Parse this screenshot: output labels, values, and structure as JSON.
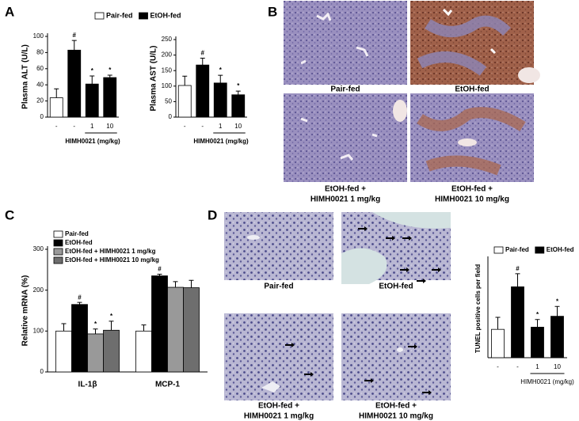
{
  "panels": {
    "A": "A",
    "B": "B",
    "C": "C",
    "D": "D"
  },
  "micrographs_B": [
    [
      "Pair-fed"
    ],
    [
      "EtOH-fed"
    ],
    [
      "EtOH-fed +",
      "HIMH0021  1 mg/kg"
    ],
    [
      "EtOH-fed +",
      "HIMH0021  10 mg/kg"
    ]
  ],
  "micrographs_D": [
    [
      "Pair-fed"
    ],
    [
      "EtOH-fed"
    ],
    [
      "EtOH-fed +",
      "HIMH0021  1 mg/kg"
    ],
    [
      "EtOH-fed +",
      "HIMH0021  10 mg/kg"
    ]
  ],
  "chart_data": [
    {
      "type": "bar",
      "ylabel": "Plasma ALT (U/L)",
      "xlabel": "HIMH0021 (mg/kg)",
      "categories": [
        "-",
        "-",
        "1",
        "10"
      ],
      "series": [
        {
          "name": "Pair-fed",
          "color": "#ffffff",
          "values": [
            24,
            null,
            null,
            null
          ],
          "errors": [
            11,
            null,
            null,
            null
          ]
        },
        {
          "name": "EtOH-fed",
          "color": "#000000",
          "values": [
            null,
            83,
            41,
            49
          ],
          "errors": [
            null,
            12,
            10,
            3
          ],
          "annotations": [
            null,
            "#",
            "*",
            "*"
          ]
        }
      ],
      "ylim": [
        0,
        100
      ],
      "yticks": [
        0,
        20,
        40,
        60,
        80,
        100
      ]
    },
    {
      "type": "bar",
      "ylabel": "Plasma AST (U/L)",
      "xlabel": "HIMH0021 (mg/kg)",
      "categories": [
        "-",
        "-",
        "1",
        "10"
      ],
      "series": [
        {
          "color": "#ffffff",
          "values": [
            102,
            null,
            null,
            null
          ],
          "errors": [
            30,
            null,
            null,
            null
          ]
        },
        {
          "color": "#000000",
          "values": [
            null,
            168,
            110,
            72
          ],
          "errors": [
            null,
            22,
            25,
            12
          ],
          "annotations": [
            null,
            "#",
            "*",
            "*"
          ]
        }
      ],
      "ylim": [
        0,
        250
      ],
      "yticks": [
        0,
        50,
        100,
        150,
        200,
        250
      ]
    },
    {
      "type": "bar",
      "ylabel": "Relative mRNA (%)",
      "categories": [
        "IL-1β",
        "MCP-1"
      ],
      "series": [
        {
          "name": "Pair-fed",
          "color": "#ffffff",
          "values": [
            100,
            100
          ],
          "errors": [
            18,
            15
          ]
        },
        {
          "name": "EtOH-fed",
          "color": "#000000",
          "values": [
            165,
            235
          ],
          "errors": [
            5,
            4
          ],
          "annotations": [
            "#",
            "#"
          ]
        },
        {
          "name": "EtOH-fed + HIMH0021 1 mg/kg",
          "color": "#999999",
          "values": [
            93,
            207
          ],
          "errors": [
            12,
            14
          ],
          "annotations": [
            "*",
            null
          ]
        },
        {
          "name": "EtOH-fed + HIMH0021 10 mg/kg",
          "color": "#6e6e6e",
          "values": [
            102,
            206
          ],
          "errors": [
            22,
            18
          ],
          "annotations": [
            "*",
            null
          ]
        }
      ],
      "ylim": [
        0,
        300
      ],
      "yticks": [
        0,
        100,
        200,
        300
      ]
    },
    {
      "type": "bar",
      "ylabel": "TUNEL positive cells per field",
      "xlabel": "HIMH0021 (mg/kg)",
      "categories": [
        "-",
        "-",
        "1",
        "10"
      ],
      "series": [
        {
          "name": "Pair-fed",
          "color": "#ffffff",
          "values": [
            2.6,
            null,
            null,
            null
          ],
          "errors": [
            1.1,
            null,
            null,
            null
          ]
        },
        {
          "name": "EtOH-fed",
          "color": "#000000",
          "values": [
            null,
            6.5,
            2.8,
            3.8
          ],
          "errors": [
            null,
            1.2,
            0.7,
            0.9
          ],
          "annotations": [
            null,
            "#",
            "*",
            "*"
          ]
        }
      ],
      "ylim": [
        0,
        9
      ]
    }
  ]
}
